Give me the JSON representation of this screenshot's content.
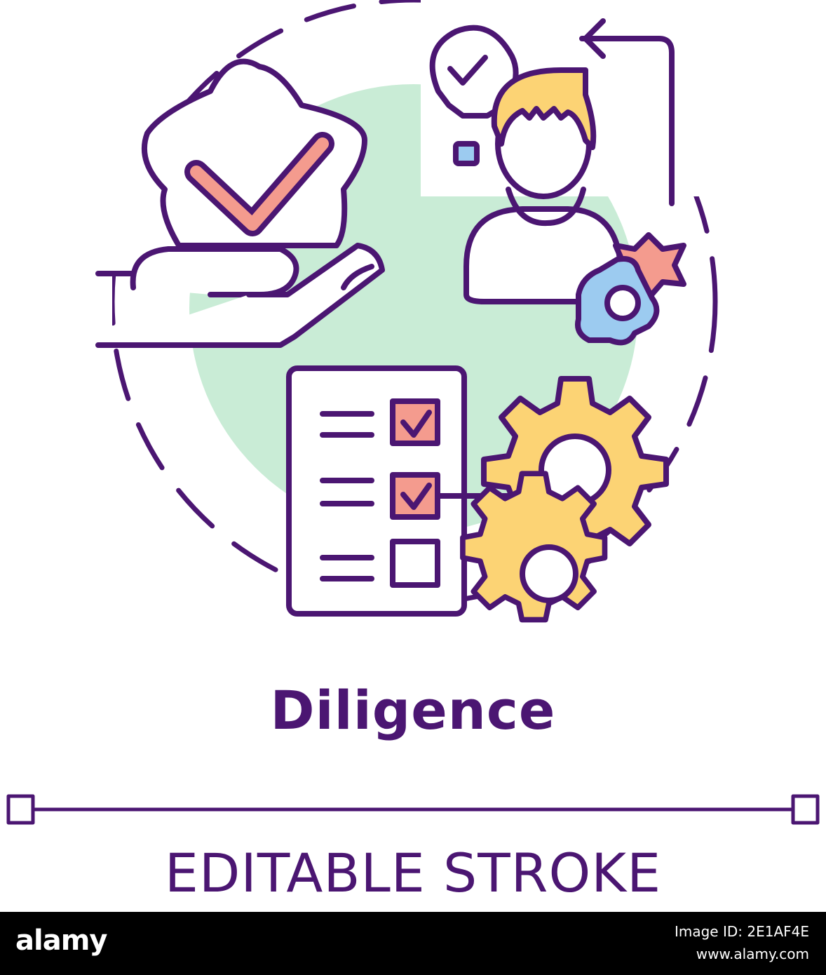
{
  "title": "Diligence",
  "subtitle": "EDITABLE STROKE",
  "footer": {
    "brand": "alamy",
    "image_id_label": "Image ID: 2E1AF4E",
    "url": "www.alamy.com"
  },
  "colors": {
    "stroke": "#4b1672",
    "green_circle": "#c9ecd6",
    "coral": "#f49b8e",
    "yellow": "#fcd374",
    "blue": "#9ccbf0",
    "background": "#ffffff",
    "footer_bg": "#000000"
  },
  "icons": [
    "star-badge-icon",
    "checkmark-icon",
    "open-hand-icon",
    "lightbulb-icon",
    "person-icon",
    "refresh-arrow-icon",
    "gear-icon",
    "checklist-icon",
    "checkbox-icon",
    "cog-icon"
  ]
}
